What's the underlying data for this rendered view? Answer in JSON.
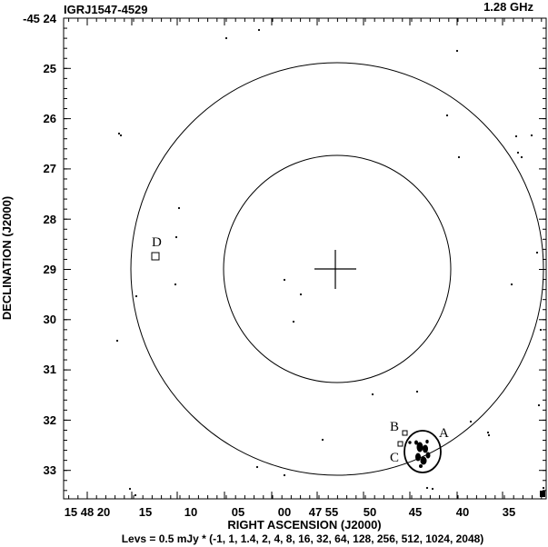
{
  "header": {
    "source_name": "IGRJ1547-4529",
    "frequency": "1.28 GHz"
  },
  "chart_data": {
    "type": "contour-map",
    "x_axis": {
      "label": "RIGHT ASCENSION (J2000)",
      "tick_labels": [
        "15 48 20",
        "15",
        "10",
        "05",
        "00",
        "47 55",
        "50",
        "45",
        "40",
        "35"
      ]
    },
    "y_axis": {
      "label": "DECLINATION (J2000)",
      "tick_labels": [
        "-45 24",
        "25",
        "26",
        "27",
        "28",
        "29",
        "30",
        "31",
        "32",
        "33"
      ]
    },
    "contour_levels_text": "Levs = 0.5 mJy * (-1, 1, 1.4, 2, 4, 8, 16, 32, 64, 128, 256, 512, 1024,  2048)",
    "sources": [
      {
        "label": "A"
      },
      {
        "label": "B"
      },
      {
        "label": "C"
      },
      {
        "label": "D"
      }
    ]
  }
}
